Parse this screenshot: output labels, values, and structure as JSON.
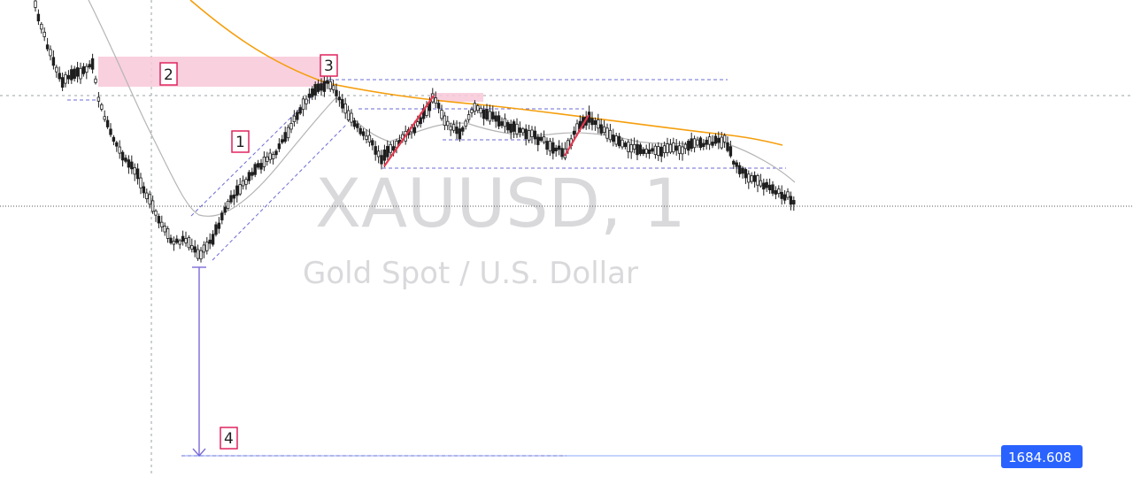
{
  "watermark": {
    "symbol": "XAUUSD, 1",
    "description": "Gold Spot / U.S. Dollar"
  },
  "price_label": {
    "value": "1684.608",
    "color": "#2962ff"
  },
  "annotations": [
    "1",
    "2",
    "3",
    "4"
  ],
  "colors": {
    "candle": "#1e1e1e",
    "ma_slow": "#f59e0b",
    "ma_fast": "#b5b5b5",
    "zone": "#f8c8d8",
    "label_border": "#e0245e",
    "impulse": "#e53950",
    "channel": "#6b6bd6",
    "measure": "#7c6bd6",
    "grid_dash": "#9aa0a6"
  },
  "chart_data": {
    "type": "candlestick",
    "symbol": "XAUUSD",
    "timeframe": "1",
    "y_marked_level": 1684.608,
    "notes": "Intraday 1-minute gold candles; sharp decline to a low, channel rally to level 3, range, then decline toward the current price; measured projection to 1684.608."
  }
}
